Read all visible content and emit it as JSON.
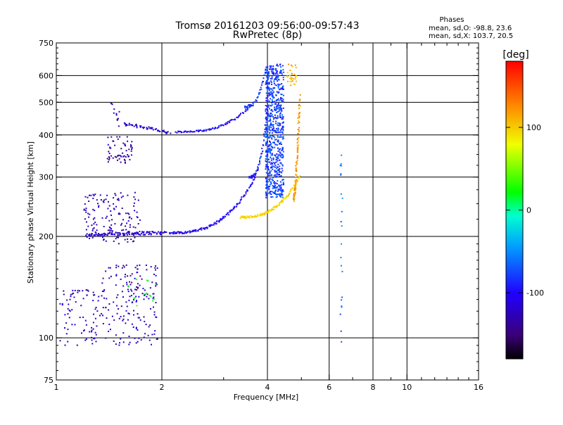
{
  "chart_data": {
    "type": "scatter",
    "title": "Tromsø 20161203 09:56:00-09:57:43",
    "subtitle": "RwPretec (8p)",
    "xlabel": "Frequency [MHz]",
    "ylabel": "Stationary phase Virtual Height [km]",
    "x_scale": "log",
    "y_scale": "log",
    "xlim": [
      1,
      16
    ],
    "ylim": [
      75,
      750
    ],
    "x_ticks": [
      1,
      2,
      4,
      6,
      8,
      10,
      16
    ],
    "x_tick_labels": [
      "1",
      "2",
      "4",
      "6",
      "8",
      "10",
      "16"
    ],
    "y_ticks": [
      75,
      100,
      200,
      300,
      400,
      500,
      600,
      750
    ],
    "y_tick_labels": [
      "75",
      "100",
      "200",
      "300",
      "400",
      "500",
      "600",
      "750"
    ],
    "grid": true,
    "phase_info": {
      "heading": "Phases",
      "line_o": "mean, sd,O: -98.8, 23.6",
      "line_x": "mean, sd,X: 103.7, 20.5"
    },
    "colorbar": {
      "label": "[deg]",
      "range": [
        -180,
        180
      ],
      "ticks": [
        100,
        0,
        -100
      ],
      "tick_labels": [
        "100",
        "0",
        "-100"
      ]
    },
    "series": [
      {
        "traces": [
          {
            "f0": 1.22,
            "f1": 2.05,
            "h0": 200,
            "h1": 205,
            "curv": -0.35,
            "n": 110,
            "jf": 0.02,
            "jh": 0.025,
            "ph": -118
          },
          {
            "f0": 2.1,
            "f1": 3.7,
            "h0": 205,
            "h1": 300,
            "curv": 0.9,
            "n": 130,
            "jf": 0.01,
            "jh": 0.015,
            "ph": -102
          },
          {
            "f0": 3.55,
            "f1": 4.05,
            "h0": 300,
            "h1": 560,
            "curv": 0.9,
            "n": 60,
            "jf": 0.008,
            "jh": 0.02,
            "ph": -85
          },
          {
            "f0": 1.55,
            "f1": 2.1,
            "h0": 430,
            "h1": 405,
            "curv": 0.2,
            "n": 50,
            "jf": 0.02,
            "jh": 0.02,
            "ph": -120
          },
          {
            "f0": 2.2,
            "f1": 3.6,
            "h0": 408,
            "h1": 490,
            "curv": 0.9,
            "n": 90,
            "jf": 0.01,
            "jh": 0.012,
            "ph": -100
          },
          {
            "f0": 3.45,
            "f1": 3.95,
            "h0": 485,
            "h1": 620,
            "curv": 0.9,
            "n": 40,
            "jf": 0.006,
            "jh": 0.02,
            "ph": -80
          }
        ]
      },
      {
        "traces": [
          {
            "f0": 3.35,
            "f1": 4.95,
            "h0": 228,
            "h1": 300,
            "curv": 0.8,
            "n": 120,
            "jf": 0.008,
            "jh": 0.015,
            "ph": 95
          },
          {
            "f0": 4.75,
            "f1": 4.95,
            "h0": 260,
            "h1": 520,
            "curv": 0.3,
            "n": 100,
            "jf": 0.01,
            "jh": 0.05,
            "ph": 120
          }
        ]
      },
      {
        "clouds": [
          {
            "f0": 1.02,
            "f1": 1.95,
            "h0": 95,
            "h1": 140,
            "n": 200,
            "ph": -125
          },
          {
            "f0": 1.35,
            "f1": 1.95,
            "h0": 140,
            "h1": 165,
            "n": 60,
            "ph": -130
          },
          {
            "f0": 1.2,
            "f1": 1.75,
            "h0": 190,
            "h1": 270,
            "n": 150,
            "ph": -128
          },
          {
            "f0": 1.38,
            "f1": 1.65,
            "h0": 330,
            "h1": 395,
            "n": 60,
            "ph": -135
          },
          {
            "f0": 1.42,
            "f1": 1.52,
            "h0": 420,
            "h1": 505,
            "n": 12,
            "ph": -135
          },
          {
            "f0": 3.95,
            "f1": 4.45,
            "h0": 260,
            "h1": 650,
            "n": 700,
            "ph": -78
          },
          {
            "f0": 4.55,
            "f1": 4.85,
            "h0": 560,
            "h1": 650,
            "n": 30,
            "ph": 105
          },
          {
            "f0": 6.45,
            "f1": 6.55,
            "h0": 90,
            "h1": 360,
            "n": 22,
            "ph": -60
          },
          {
            "f0": 1.6,
            "f1": 1.95,
            "h0": 120,
            "h1": 150,
            "n": 15,
            "ph": 20
          }
        ]
      }
    ]
  }
}
